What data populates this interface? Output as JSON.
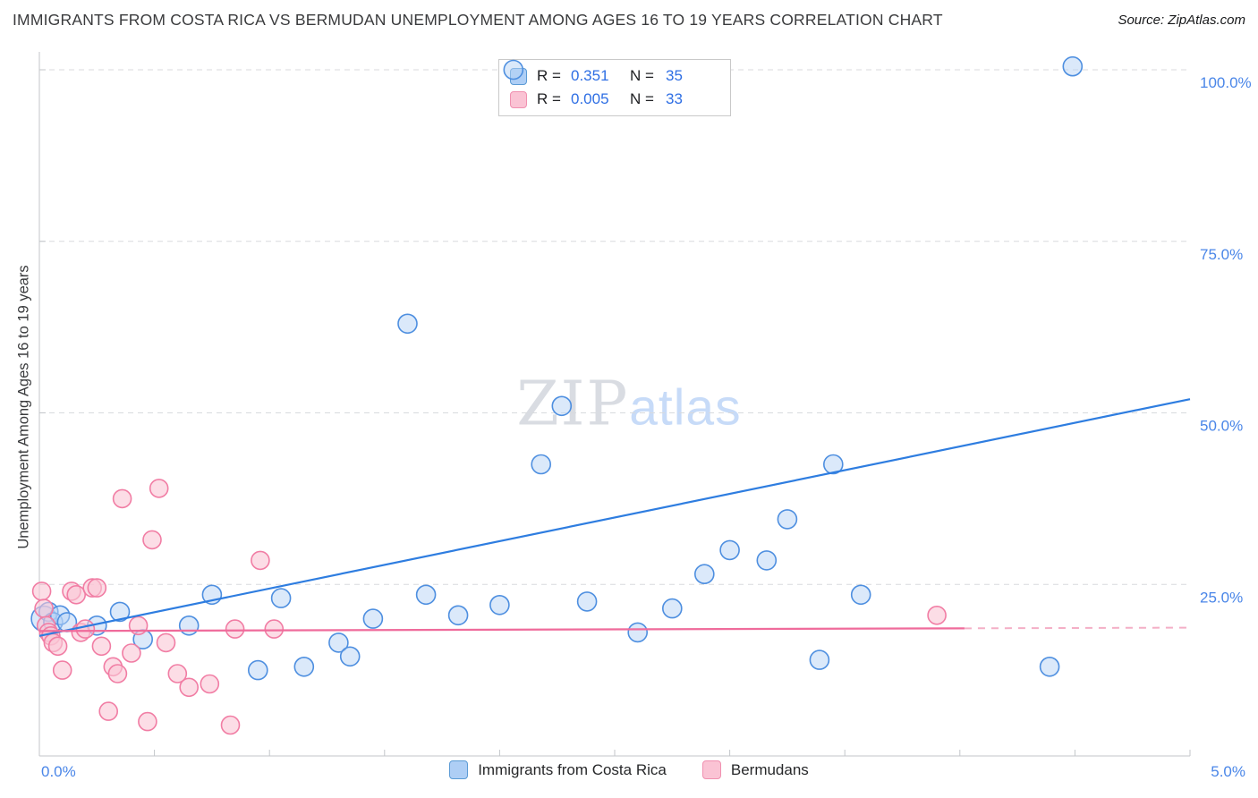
{
  "header": {
    "title": "IMMIGRANTS FROM COSTA RICA VS BERMUDAN UNEMPLOYMENT AMONG AGES 16 TO 19 YEARS CORRELATION CHART",
    "source": "Source: ZipAtlas.com"
  },
  "watermark": {
    "part1": "ZIP",
    "part2": "atlas"
  },
  "correlation_legend": {
    "rows": [
      {
        "series": "Immigrants from Costa Rica",
        "r_label": "R =",
        "r_value": "0.351",
        "n_label": "N =",
        "n_value": "35"
      },
      {
        "series": "Bermudans",
        "r_label": "R =",
        "r_value": "0.005",
        "n_label": "N =",
        "n_value": "33"
      }
    ]
  },
  "series_legend": {
    "items": [
      {
        "label": "Immigrants from Costa Rica"
      },
      {
        "label": "Bermudans"
      }
    ]
  },
  "chart_data": {
    "type": "scatter",
    "title": "IMMIGRANTS FROM COSTA RICA VS BERMUDAN UNEMPLOYMENT AMONG AGES 16 TO 19 YEARS CORRELATION CHART",
    "ylabel": "Unemployment Among Ages 16 to 19 years",
    "xlim": [
      0,
      5
    ],
    "ylim": [
      0,
      100
    ],
    "x_min_label": "0.0%",
    "x_max_label": "5.0%",
    "x_tick_step": 0.5,
    "grid": "horizontal-dashed",
    "legend_position": "top-center",
    "axis_label_color": "#4a86e8",
    "y_ticks": [
      {
        "value": 100,
        "label": "100.0%"
      },
      {
        "value": 75,
        "label": "75.0%"
      },
      {
        "value": 50,
        "label": "50.0%"
      },
      {
        "value": 25,
        "label": "25.0%"
      }
    ],
    "series": [
      {
        "id": "costa-rica",
        "name": "Immigrants from Costa Rica",
        "R": 0.351,
        "N": 35,
        "fill": "#b7d3f6",
        "fill_opacity": 0.5,
        "stroke": "#4e8fe0",
        "point_radius": 10.5,
        "points": [
          [
            0.02,
            20.0,
            14
          ],
          [
            0.04,
            21.0
          ],
          [
            0.06,
            19.5
          ],
          [
            0.09,
            20.5
          ],
          [
            0.12,
            19.5
          ],
          [
            0.25,
            19.0
          ],
          [
            0.35,
            21.0
          ],
          [
            0.45,
            17.0
          ],
          [
            0.65,
            19.0
          ],
          [
            0.75,
            23.5
          ],
          [
            0.95,
            12.5
          ],
          [
            1.05,
            23.0
          ],
          [
            1.15,
            13.0
          ],
          [
            1.3,
            16.5
          ],
          [
            1.35,
            14.5
          ],
          [
            1.45,
            20.0
          ],
          [
            1.6,
            63.0
          ],
          [
            1.68,
            23.5
          ],
          [
            1.82,
            20.5
          ],
          [
            2.0,
            22.0
          ],
          [
            2.06,
            100.0,
            10.5,
            "front"
          ],
          [
            2.18,
            42.5
          ],
          [
            2.27,
            51.0
          ],
          [
            2.38,
            22.5
          ],
          [
            2.6,
            18.0
          ],
          [
            2.75,
            21.5
          ],
          [
            2.89,
            26.5
          ],
          [
            3.0,
            30.0
          ],
          [
            3.16,
            28.5
          ],
          [
            3.25,
            34.5
          ],
          [
            3.39,
            14.0
          ],
          [
            3.45,
            42.5
          ],
          [
            3.57,
            23.5
          ],
          [
            4.39,
            13.0
          ],
          [
            4.49,
            100.5
          ]
        ]
      },
      {
        "id": "bermudans",
        "name": "Bermudans",
        "R": 0.005,
        "N": 33,
        "fill": "#fac6d6",
        "fill_opacity": 0.6,
        "stroke": "#f17da4",
        "point_radius": 10,
        "points": [
          [
            0.01,
            24.0
          ],
          [
            0.02,
            21.5
          ],
          [
            0.03,
            19.0
          ],
          [
            0.04,
            18.0
          ],
          [
            0.05,
            17.5
          ],
          [
            0.06,
            16.5
          ],
          [
            0.08,
            16.0
          ],
          [
            0.1,
            12.5
          ],
          [
            0.14,
            24.0
          ],
          [
            0.16,
            23.5
          ],
          [
            0.18,
            18.0
          ],
          [
            0.2,
            18.5
          ],
          [
            0.23,
            24.5
          ],
          [
            0.25,
            24.5
          ],
          [
            0.27,
            16.0
          ],
          [
            0.3,
            6.5
          ],
          [
            0.32,
            13.0
          ],
          [
            0.34,
            12.0
          ],
          [
            0.36,
            37.5
          ],
          [
            0.4,
            15.0
          ],
          [
            0.43,
            19.0
          ],
          [
            0.47,
            5.0
          ],
          [
            0.49,
            31.5
          ],
          [
            0.52,
            39.0
          ],
          [
            0.55,
            16.5
          ],
          [
            0.6,
            12.0
          ],
          [
            0.65,
            10.0
          ],
          [
            0.74,
            10.5
          ],
          [
            0.83,
            4.5
          ],
          [
            0.85,
            18.5
          ],
          [
            0.96,
            28.5
          ],
          [
            1.02,
            18.5
          ],
          [
            3.9,
            20.5
          ]
        ]
      }
    ],
    "trend_lines": [
      {
        "series": "Immigrants from Costa Rica",
        "color": "#2e7de0",
        "x1": 0,
        "y1": 17.5,
        "x2": 5,
        "y2": 52.0,
        "style": "solid",
        "width": 2.2
      },
      {
        "series": "Bermudans",
        "color": "#ef6b9b",
        "x1": 0,
        "y1": 18.2,
        "x2": 4.02,
        "y2": 18.6,
        "style": "solid",
        "width": 2.2
      },
      {
        "series": "Bermudans",
        "color": "#f4afc6",
        "x1": 4.02,
        "y1": 18.6,
        "x2": 5,
        "y2": 18.7,
        "style": "dashed",
        "width": 2
      }
    ]
  }
}
